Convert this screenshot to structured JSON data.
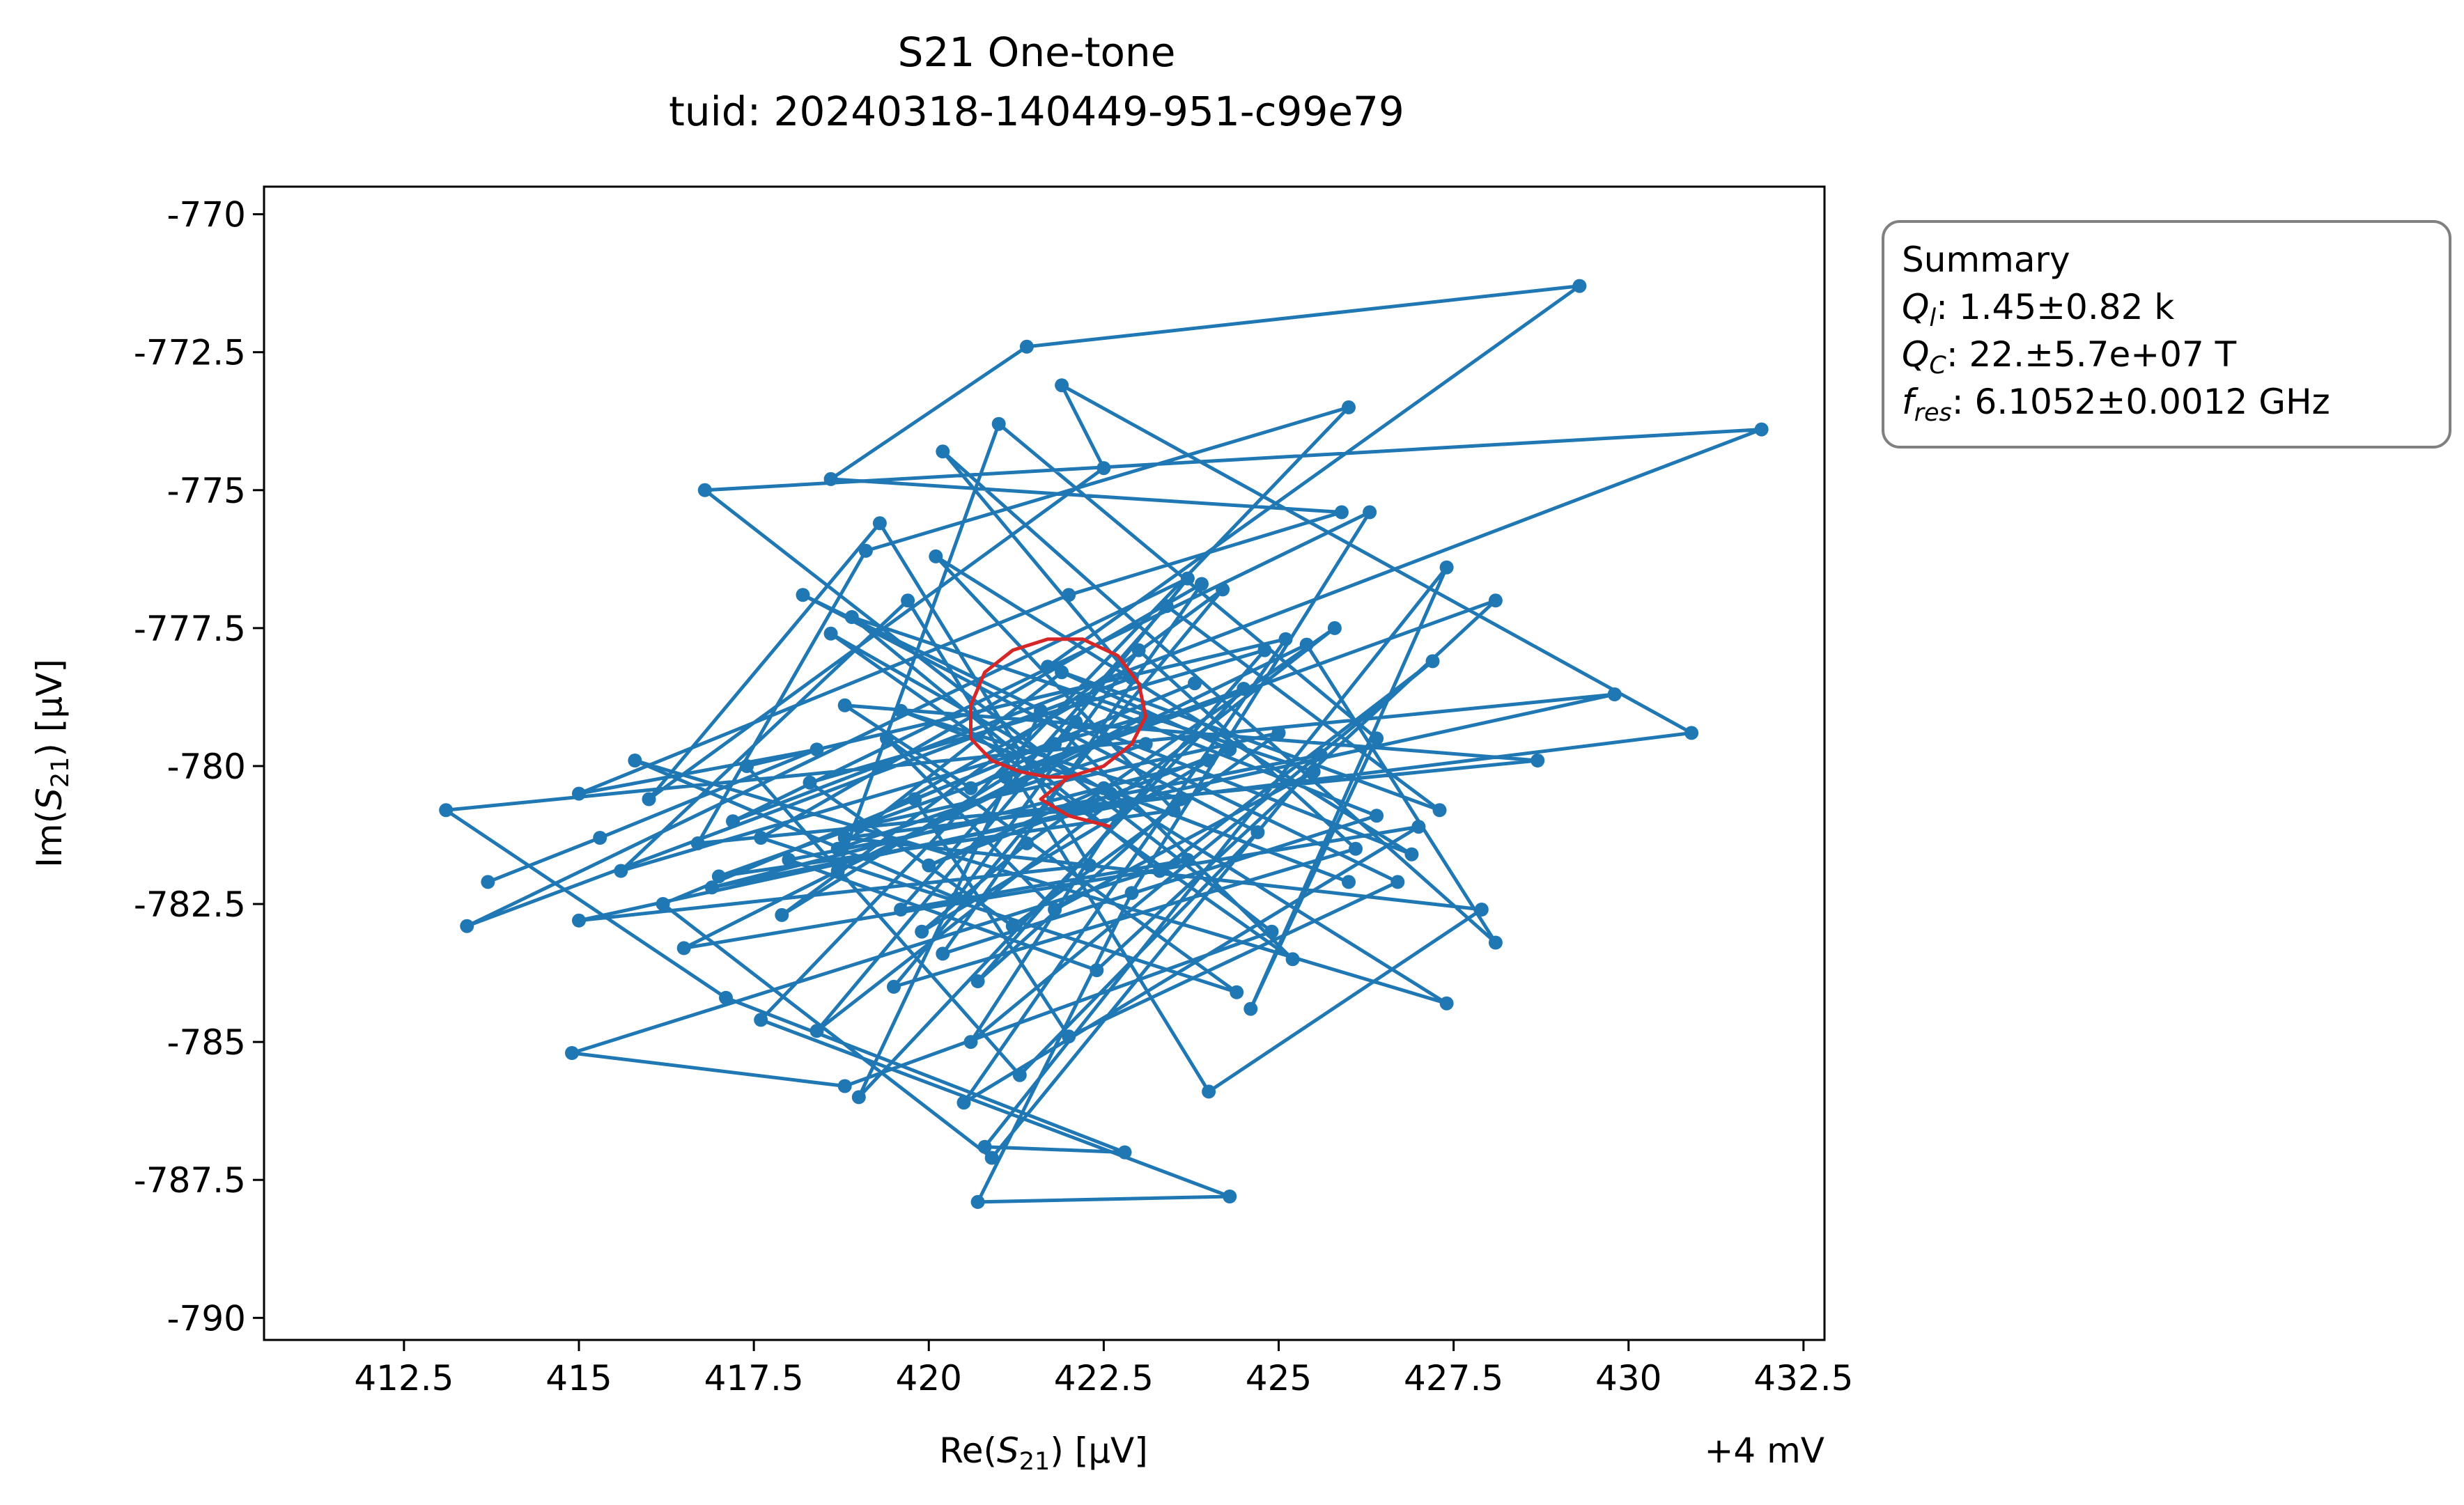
{
  "chart_data": {
    "type": "line",
    "title_line1": "S21 One-tone",
    "title_line2": "tuid: 20240318-140449-951-c99e79",
    "xlabel": "Re(",
    "xlabel_var": "S",
    "xlabel_sub": "21",
    "xlabel_unit": ") [µV]",
    "ylabel": "Im(",
    "ylabel_var": "S",
    "ylabel_sub": "21",
    "ylabel_unit": ") [µV]",
    "x_offset_label": "+4 mV",
    "xlim": [
      410.5,
      432.8
    ],
    "ylim": [
      -790.4,
      -769.5
    ],
    "xticks": [
      412.5,
      415,
      417.5,
      420,
      422.5,
      425,
      427.5,
      430,
      432.5
    ],
    "xtick_labels": [
      "412.5",
      "415",
      "417.5",
      "420",
      "422.5",
      "425",
      "427.5",
      "430",
      "432.5"
    ],
    "yticks": [
      -770,
      -772.5,
      -775,
      -777.5,
      -780,
      -782.5,
      -785,
      -787.5,
      -790
    ],
    "ytick_labels": [
      "-770",
      "-772.5",
      "-775",
      "-777.5",
      "-780",
      "-782.5",
      "-785",
      "-787.5",
      "-790"
    ],
    "grid": false,
    "series": [
      {
        "color": "#1f77b4",
        "marker": "circle",
        "x": [
          413.7,
          415.3,
          418.4,
          415.0,
          422.0,
          425.9,
          418.6,
          421.4,
          429.3,
          421.7,
          427.3,
          423.4,
          419.6,
          423.7,
          414.9,
          418.8,
          424.9,
          416.8,
          431.9,
          417.2,
          426.3,
          422.9,
          420.7,
          424.3,
          417.6,
          426.0,
          419.1,
          416.7,
          428.7,
          418.8,
          420.6,
          421.8,
          423.7,
          413.4,
          422.9,
          420.2,
          428.1,
          425.4,
          418.7,
          421.0,
          426.4,
          424.6,
          427.4,
          420.8,
          422.8,
          417.1,
          413.1,
          429.8,
          415.0,
          422.3,
          419.3,
          416.0,
          422.5,
          421.9,
          430.9,
          418.8,
          427.9,
          424.0,
          419.7,
          415.6,
          423.1,
          416.5,
          427.0,
          420.5,
          425.1,
          417.4,
          421.3,
          424.7,
          418.2,
          426.7,
          422.0,
          419.8,
          423.8,
          416.2,
          420.9,
          425.6,
          418.0,
          422.4,
          428.1,
          421.1,
          417.9,
          424.2,
          419.5,
          426.1,
          423.0,
          420.4,
          415.8,
          427.4,
          422.6,
          418.6,
          425.2,
          421.6,
          419.0,
          424.5,
          417.0,
          423.5,
          420.1,
          426.9,
          422.1,
          418.4,
          425.8,
          421.4,
          419.9,
          424.0,
          416.9,
          422.8,
          420.6,
          427.2,
          423.3,
          418.9,
          425.5,
          421.8,
          419.4,
          424.4,
          417.6,
          423.9,
          420.2,
          426.4,
          422.2,
          419.0,
          425.0,
          421.2,
          418.3,
          424.8,
          420.7,
          423.6,
          419.6,
          426.0,
          422.5,
          420.0,
          424.3,
          421.9,
          418.7,
          423.1
        ],
        "y": [
          -782.1,
          -781.3,
          -779.7,
          -780.5,
          -776.9,
          -775.4,
          -774.8,
          -772.4,
          -771.3,
          -778.2,
          -780.8,
          -777.1,
          -782.6,
          -781.7,
          -785.2,
          -785.8,
          -783.0,
          -775.0,
          -773.9,
          -781.0,
          -775.4,
          -782.3,
          -787.9,
          -787.8,
          -784.6,
          -773.5,
          -776.1,
          -781.4,
          -779.9,
          -778.9,
          -780.4,
          -779.6,
          -776.6,
          -782.9,
          -778.4,
          -774.3,
          -783.2,
          -777.8,
          -781.9,
          -773.8,
          -779.5,
          -784.4,
          -776.4,
          -786.9,
          -787.0,
          -784.2,
          -780.8,
          -778.7,
          -782.8,
          -781.8,
          -775.6,
          -780.6,
          -774.6,
          -773.1,
          -779.4,
          -781.3,
          -782.6,
          -785.9,
          -777.0,
          -781.9,
          -779.1,
          -783.3,
          -781.1,
          -786.1,
          -777.7,
          -780.0,
          -785.6,
          -781.2,
          -776.9,
          -782.1,
          -784.9,
          -780.6,
          -778.5,
          -782.5,
          -787.1,
          -779.8,
          -781.7,
          -783.7,
          -777.0,
          -780.2,
          -782.7,
          -776.8,
          -784.0,
          -781.5,
          -777.9,
          -782.4,
          -779.9,
          -784.3,
          -780.5,
          -777.6,
          -783.5,
          -779.0,
          -786.0,
          -778.6,
          -782.0,
          -780.8,
          -776.2,
          -781.6,
          -779.2,
          -784.8,
          -777.5,
          -781.4,
          -783.0,
          -779.9,
          -782.2,
          -780.7,
          -785.0,
          -778.1,
          -781.9,
          -777.3,
          -780.1,
          -782.6,
          -779.5,
          -784.1,
          -781.3,
          -776.7,
          -783.4,
          -780.9,
          -778.8,
          -781.1,
          -779.4,
          -782.9,
          -780.3,
          -777.9,
          -783.9,
          -780.6,
          -779.0,
          -782.1,
          -780.4,
          -781.8,
          -779.7,
          -778.3,
          -781.5,
          -779.6
        ]
      },
      {
        "color": "#d62728",
        "marker": "none",
        "x": [
          422.0,
          421.7,
          421.3,
          420.9,
          420.6,
          420.6,
          420.8,
          421.2,
          421.7,
          422.2,
          422.7,
          423.0,
          423.1,
          422.9,
          422.5,
          422.0,
          421.6,
          422.0,
          422.6
        ],
        "y": [
          -780.2,
          -780.2,
          -780.1,
          -779.9,
          -779.5,
          -778.9,
          -778.3,
          -777.9,
          -777.7,
          -777.7,
          -778.0,
          -778.5,
          -779.1,
          -779.6,
          -780.0,
          -780.2,
          -780.6,
          -780.9,
          -781.1
        ]
      }
    ],
    "summary": {
      "heading": "Summary",
      "ql_var": "Q",
      "ql_sub": "l",
      "ql_value": ": 1.45±0.82 k",
      "qc_var": "Q",
      "qc_sub": "C",
      "qc_value": ": 22.±5.7e+07 T",
      "fres_var": "f",
      "fres_sub": "res",
      "fres_value": ": 6.1052±0.0012 GHz"
    }
  }
}
